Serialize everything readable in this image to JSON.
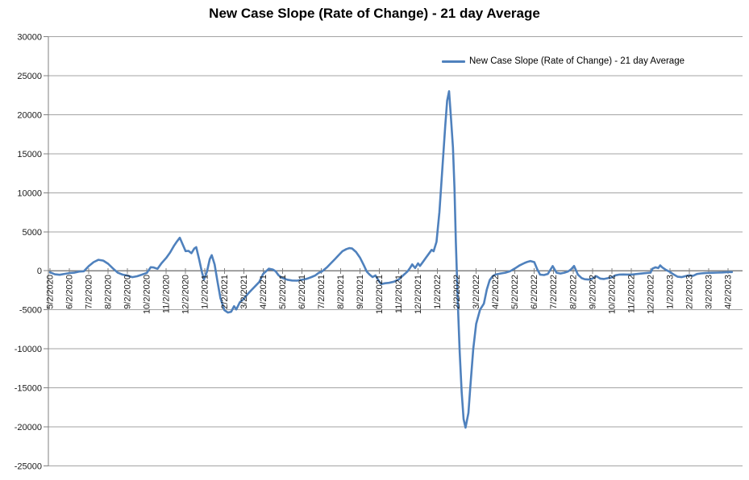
{
  "title": "New Case Slope (Rate of Change) - 21 day Average",
  "legend": {
    "label": "New Case Slope (Rate of Change) - 21 day Average"
  },
  "colors": {
    "line": "#4F81BD",
    "gridline": "#A3A3A3",
    "axis": "#808080",
    "label_text": "#1a1a1a",
    "background": "#FFFFFF"
  },
  "chart_data": {
    "type": "line",
    "title": "New Case Slope (Rate of Change) - 21 day Average",
    "series_name": "New Case Slope (Rate of Change) - 21 day Average",
    "xlabel": "",
    "ylabel": "",
    "ylim": [
      -25000,
      30000
    ],
    "y_tick_step": 5000,
    "grid": true,
    "legend_position": "top-right-inside",
    "x_tick_labels": [
      "5/2/2020",
      "6/2/2020",
      "7/2/2020",
      "8/2/2020",
      "9/2/2020",
      "10/2/2020",
      "11/2/2020",
      "12/2/2020",
      "1/2/2021",
      "2/2/2021",
      "3/2/2021",
      "4/2/2021",
      "5/2/2021",
      "6/2/2021",
      "7/2/2021",
      "8/2/2021",
      "9/2/2021",
      "10/2/2021",
      "11/2/2021",
      "12/2/2021",
      "1/2/2022",
      "2/2/2022",
      "3/2/2022",
      "4/2/2022",
      "5/2/2022",
      "6/2/2022",
      "7/2/2022",
      "8/2/2022",
      "9/2/2022",
      "10/2/2022",
      "11/2/2022",
      "12/2/2022",
      "1/2/2023",
      "2/2/2023",
      "3/2/2023",
      "4/2/2023"
    ],
    "y_ticks": [
      30000,
      25000,
      20000,
      15000,
      10000,
      5000,
      0,
      -5000,
      -10000,
      -15000,
      -20000,
      -25000
    ],
    "y_tick_labels": [
      "30000",
      "25000",
      "20000",
      "15000",
      "10000",
      "5000",
      "0",
      "-5000",
      "-10000",
      "-15000",
      "-20000",
      "-25000"
    ],
    "x_unit_note": "x = fractional months since 5/2/2020 (one unit per monthly tick label)",
    "points": [
      [
        0,
        -200
      ],
      [
        0.25,
        -450
      ],
      [
        0.5,
        -520
      ],
      [
        0.75,
        -400
      ],
      [
        1,
        -300
      ],
      [
        1.25,
        -250
      ],
      [
        1.5,
        -100
      ],
      [
        1.75,
        -60
      ],
      [
        2,
        600
      ],
      [
        2.25,
        1100
      ],
      [
        2.5,
        1400
      ],
      [
        2.75,
        1300
      ],
      [
        3,
        900
      ],
      [
        3.25,
        300
      ],
      [
        3.5,
        -250
      ],
      [
        3.75,
        -500
      ],
      [
        4,
        -620
      ],
      [
        4.25,
        -820
      ],
      [
        4.5,
        -700
      ],
      [
        4.75,
        -500
      ],
      [
        5,
        -280
      ],
      [
        5.2,
        450
      ],
      [
        5.35,
        420
      ],
      [
        5.55,
        250
      ],
      [
        5.75,
        950
      ],
      [
        6,
        1650
      ],
      [
        6.2,
        2340
      ],
      [
        6.4,
        3200
      ],
      [
        6.55,
        3750
      ],
      [
        6.7,
        4230
      ],
      [
        6.85,
        3370
      ],
      [
        7,
        2520
      ],
      [
        7.15,
        2550
      ],
      [
        7.3,
        2250
      ],
      [
        7.45,
        2850
      ],
      [
        7.55,
        3020
      ],
      [
        7.7,
        1450
      ],
      [
        7.85,
        -250
      ],
      [
        7.95,
        -1100
      ],
      [
        8.1,
        -150
      ],
      [
        8.25,
        1500
      ],
      [
        8.35,
        2000
      ],
      [
        8.5,
        800
      ],
      [
        8.65,
        -1400
      ],
      [
        8.8,
        -3500
      ],
      [
        9,
        -5050
      ],
      [
        9.18,
        -5360
      ],
      [
        9.35,
        -5250
      ],
      [
        9.5,
        -4540
      ],
      [
        9.62,
        -4950
      ],
      [
        9.8,
        -4020
      ],
      [
        10,
        -3610
      ],
      [
        10.2,
        -2990
      ],
      [
        10.4,
        -2470
      ],
      [
        10.6,
        -1960
      ],
      [
        10.8,
        -1440
      ],
      [
        11,
        -410
      ],
      [
        11.15,
        -70
      ],
      [
        11.3,
        270
      ],
      [
        11.5,
        170
      ],
      [
        11.65,
        -70
      ],
      [
        11.8,
        -580
      ],
      [
        12,
        -930
      ],
      [
        12.25,
        -1150
      ],
      [
        12.5,
        -1250
      ],
      [
        12.75,
        -1270
      ],
      [
        13,
        -1160
      ],
      [
        13.25,
        -1030
      ],
      [
        13.5,
        -800
      ],
      [
        13.7,
        -590
      ],
      [
        13.85,
        -300
      ],
      [
        14.05,
        -70
      ],
      [
        14.3,
        440
      ],
      [
        14.5,
        960
      ],
      [
        14.7,
        1470
      ],
      [
        14.9,
        1990
      ],
      [
        15.1,
        2510
      ],
      [
        15.3,
        2780
      ],
      [
        15.45,
        2900
      ],
      [
        15.6,
        2850
      ],
      [
        15.8,
        2400
      ],
      [
        16,
        1700
      ],
      [
        16.2,
        700
      ],
      [
        16.35,
        -100
      ],
      [
        16.5,
        -500
      ],
      [
        16.65,
        -800
      ],
      [
        16.8,
        -600
      ],
      [
        17,
        -1400
      ],
      [
        17.1,
        -1700
      ],
      [
        17.3,
        -1600
      ],
      [
        17.5,
        -1550
      ],
      [
        17.75,
        -1400
      ],
      [
        18,
        -1130
      ],
      [
        18.25,
        -550
      ],
      [
        18.45,
        -100
      ],
      [
        18.6,
        410
      ],
      [
        18.7,
        820
      ],
      [
        18.85,
        350
      ],
      [
        19,
        950
      ],
      [
        19.1,
        620
      ],
      [
        19.25,
        1130
      ],
      [
        19.4,
        1650
      ],
      [
        19.55,
        2160
      ],
      [
        19.7,
        2680
      ],
      [
        19.8,
        2500
      ],
      [
        19.95,
        3700
      ],
      [
        20.1,
        7500
      ],
      [
        20.25,
        13000
      ],
      [
        20.4,
        18500
      ],
      [
        20.5,
        21800
      ],
      [
        20.6,
        23000
      ],
      [
        20.7,
        19500
      ],
      [
        20.8,
        15800
      ],
      [
        20.88,
        10600
      ],
      [
        20.95,
        3700
      ],
      [
        21.05,
        -4000
      ],
      [
        21.15,
        -10500
      ],
      [
        21.25,
        -15500
      ],
      [
        21.35,
        -19000
      ],
      [
        21.45,
        -20100
      ],
      [
        21.6,
        -18200
      ],
      [
        21.7,
        -14800
      ],
      [
        21.85,
        -10000
      ],
      [
        22,
        -6800
      ],
      [
        22.2,
        -5000
      ],
      [
        22.4,
        -4200
      ],
      [
        22.55,
        -2400
      ],
      [
        22.7,
        -1200
      ],
      [
        22.85,
        -700
      ],
      [
        23,
        -480
      ],
      [
        23.25,
        -350
      ],
      [
        23.5,
        -250
      ],
      [
        23.75,
        -50
      ],
      [
        24,
        300
      ],
      [
        24.25,
        700
      ],
      [
        24.5,
        1000
      ],
      [
        24.65,
        1150
      ],
      [
        24.8,
        1250
      ],
      [
        25,
        1100
      ],
      [
        25.15,
        200
      ],
      [
        25.3,
        -500
      ],
      [
        25.5,
        -550
      ],
      [
        25.7,
        -400
      ],
      [
        25.95,
        600
      ],
      [
        26.15,
        -250
      ],
      [
        26.35,
        -350
      ],
      [
        26.55,
        -250
      ],
      [
        26.75,
        -80
      ],
      [
        26.9,
        200
      ],
      [
        27.05,
        620
      ],
      [
        27.25,
        -500
      ],
      [
        27.45,
        -950
      ],
      [
        27.6,
        -1080
      ],
      [
        27.8,
        -1120
      ],
      [
        28,
        -1000
      ],
      [
        28.2,
        -690
      ],
      [
        28.4,
        -1000
      ],
      [
        28.6,
        -1050
      ],
      [
        28.8,
        -950
      ],
      [
        29,
        -860
      ],
      [
        29.2,
        -580
      ],
      [
        29.4,
        -480
      ],
      [
        29.6,
        -470
      ],
      [
        29.8,
        -490
      ],
      [
        30.05,
        -480
      ],
      [
        30.3,
        -410
      ],
      [
        30.7,
        -310
      ],
      [
        31,
        -240
      ],
      [
        31.1,
        270
      ],
      [
        31.25,
        440
      ],
      [
        31.4,
        340
      ],
      [
        31.5,
        690
      ],
      [
        31.6,
        440
      ],
      [
        31.8,
        100
      ],
      [
        32,
        -140
      ],
      [
        32.2,
        -480
      ],
      [
        32.4,
        -760
      ],
      [
        32.6,
        -820
      ],
      [
        32.8,
        -690
      ],
      [
        33,
        -580
      ],
      [
        33.2,
        -650
      ],
      [
        33.4,
        -410
      ],
      [
        33.6,
        -340
      ],
      [
        33.8,
        -300
      ],
      [
        34,
        -270
      ],
      [
        34.2,
        -260
      ],
      [
        34.45,
        -240
      ],
      [
        34.7,
        -220
      ],
      [
        34.85,
        -200
      ],
      [
        35,
        -170
      ],
      [
        35.2,
        -170
      ]
    ]
  }
}
